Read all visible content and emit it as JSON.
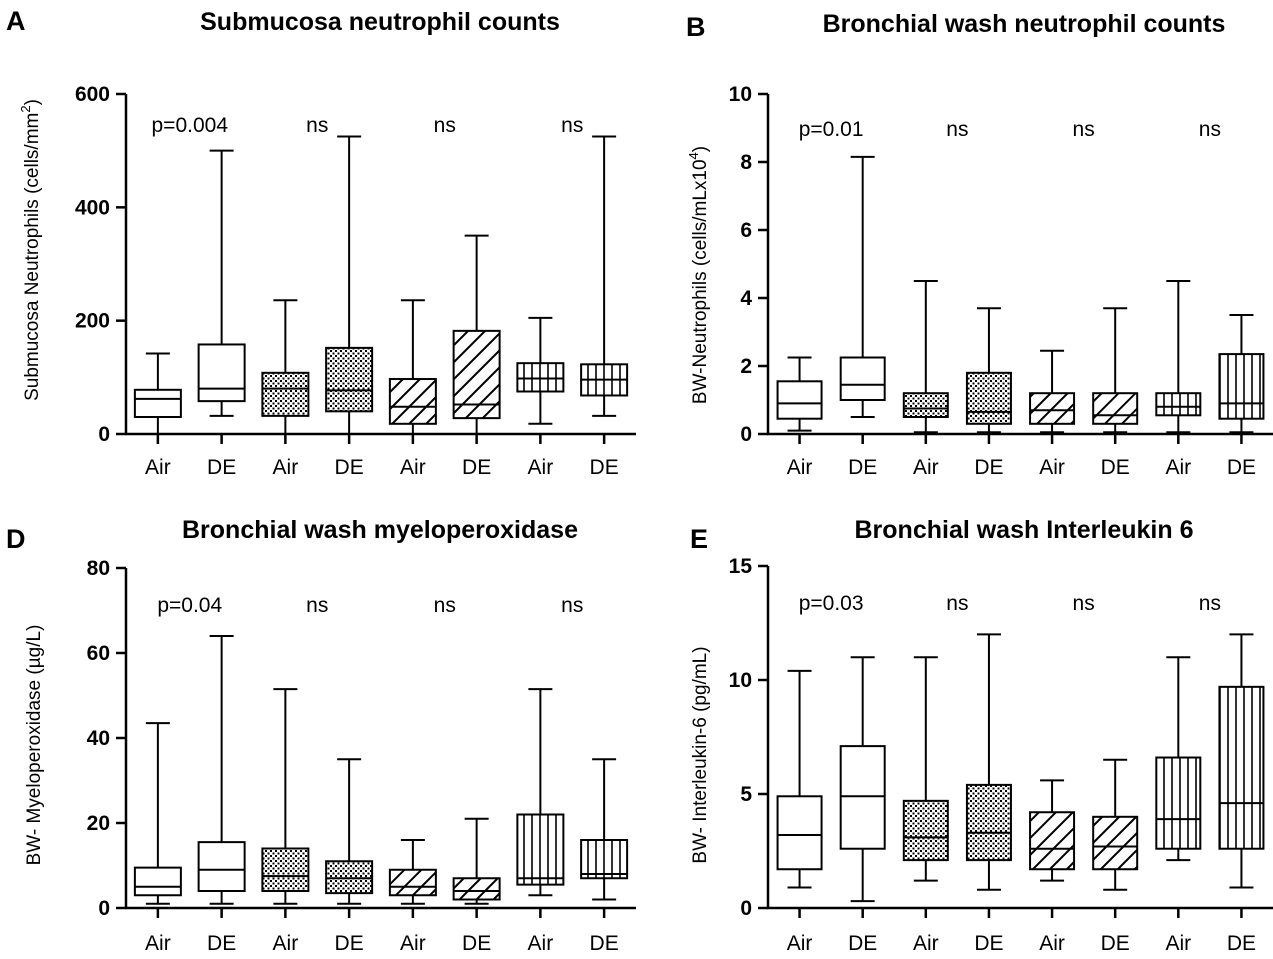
{
  "chart_data": [
    {
      "panel_label": "A",
      "type": "box",
      "title": "Submucosa neutrophil counts",
      "ylabel": "Submucosa Neutrophils (cells/mm",
      "ylabel_sup": "2",
      "ylabel_end": ")",
      "ylim": [
        0,
        600
      ],
      "yticks": [
        0,
        200,
        400,
        600
      ],
      "categories": [
        "Air",
        "DE",
        "Air",
        "DE",
        "Air",
        "DE",
        "Air",
        "DE"
      ],
      "patterns": [
        "none",
        "none",
        "dots",
        "dots",
        "diag",
        "diag",
        "vert",
        "vert"
      ],
      "annotations": [
        "p=0.004",
        "ns",
        "ns",
        "ns"
      ],
      "boxes": [
        {
          "min": 0,
          "q1": 30,
          "median": 62,
          "q3": 78,
          "max": 142
        },
        {
          "min": 32,
          "q1": 58,
          "median": 80,
          "q3": 158,
          "max": 500
        },
        {
          "min": 0,
          "q1": 32,
          "median": 80,
          "q3": 108,
          "max": 236
        },
        {
          "min": 0,
          "q1": 40,
          "median": 77,
          "q3": 152,
          "max": 525
        },
        {
          "min": 0,
          "q1": 18,
          "median": 48,
          "q3": 97,
          "max": 236
        },
        {
          "min": 0,
          "q1": 28,
          "median": 52,
          "q3": 182,
          "max": 350
        },
        {
          "min": 18,
          "q1": 75,
          "median": 98,
          "q3": 125,
          "max": 205
        },
        {
          "min": 32,
          "q1": 68,
          "median": 96,
          "q3": 123,
          "max": 525
        }
      ]
    },
    {
      "panel_label": "B",
      "type": "box",
      "title": "Bronchial wash neutrophil counts",
      "ylabel": "BW-Neutrophils (cells/mLx10",
      "ylabel_sup": "4",
      "ylabel_end": ")",
      "ylim": [
        0,
        10
      ],
      "yticks": [
        0,
        2,
        4,
        6,
        8,
        10
      ],
      "categories": [
        "Air",
        "DE",
        "Air",
        "DE",
        "Air",
        "DE",
        "Air",
        "DE"
      ],
      "patterns": [
        "none",
        "none",
        "dots",
        "dots",
        "diag",
        "diag",
        "vert",
        "vert"
      ],
      "annotations": [
        "p=0.01",
        "ns",
        "ns",
        "ns"
      ],
      "boxes": [
        {
          "min": 0.1,
          "q1": 0.45,
          "median": 0.9,
          "q3": 1.55,
          "max": 2.25
        },
        {
          "min": 0.5,
          "q1": 1.0,
          "median": 1.45,
          "q3": 2.25,
          "max": 8.15
        },
        {
          "min": 0.05,
          "q1": 0.5,
          "median": 0.75,
          "q3": 1.2,
          "max": 4.5
        },
        {
          "min": 0.05,
          "q1": 0.3,
          "median": 0.65,
          "q3": 1.8,
          "max": 3.7
        },
        {
          "min": 0.05,
          "q1": 0.3,
          "median": 0.7,
          "q3": 1.2,
          "max": 2.45
        },
        {
          "min": 0.05,
          "q1": 0.3,
          "median": 0.55,
          "q3": 1.2,
          "max": 3.7
        },
        {
          "min": 0.05,
          "q1": 0.55,
          "median": 0.8,
          "q3": 1.2,
          "max": 4.5
        },
        {
          "min": 0.05,
          "q1": 0.45,
          "median": 0.9,
          "q3": 2.35,
          "max": 3.5
        }
      ]
    },
    {
      "panel_label": "D",
      "type": "box",
      "title": "Bronchial wash myeloperoxidase",
      "ylabel": "BW- Myeloperoxidase (µg/L)",
      "ylabel_sup": "",
      "ylabel_end": "",
      "ylim": [
        0,
        80
      ],
      "yticks": [
        0,
        20,
        40,
        60,
        80
      ],
      "categories": [
        "Air",
        "DE",
        "Air",
        "DE",
        "Air",
        "DE",
        "Air",
        "DE"
      ],
      "patterns": [
        "none",
        "none",
        "dots",
        "dots",
        "diag",
        "diag",
        "vert",
        "vert"
      ],
      "annotations": [
        "p=0.04",
        "ns",
        "ns",
        "ns"
      ],
      "boxes": [
        {
          "min": 1.0,
          "q1": 3.0,
          "median": 5.0,
          "q3": 9.5,
          "max": 43.5
        },
        {
          "min": 1.0,
          "q1": 4.0,
          "median": 9.0,
          "q3": 15.5,
          "max": 64.0
        },
        {
          "min": 1.0,
          "q1": 4.0,
          "median": 7.5,
          "q3": 14.0,
          "max": 51.5
        },
        {
          "min": 1.0,
          "q1": 3.5,
          "median": 7.0,
          "q3": 11.0,
          "max": 35.0
        },
        {
          "min": 1.0,
          "q1": 3.0,
          "median": 5.0,
          "q3": 9.0,
          "max": 16.0
        },
        {
          "min": 1.0,
          "q1": 2.0,
          "median": 4.0,
          "q3": 7.0,
          "max": 21.0
        },
        {
          "min": 3.0,
          "q1": 5.5,
          "median": 7.0,
          "q3": 22.0,
          "max": 51.5
        },
        {
          "min": 2.0,
          "q1": 7.0,
          "median": 8.0,
          "q3": 16.0,
          "max": 35.0
        }
      ]
    },
    {
      "panel_label": "E",
      "type": "box",
      "title": "Bronchial wash Interleukin 6",
      "ylabel": "BW- Interleukin-6 (pg/mL)",
      "ylabel_sup": "",
      "ylabel_end": "",
      "ylim": [
        0,
        15
      ],
      "yticks": [
        0,
        5,
        10,
        15
      ],
      "categories": [
        "Air",
        "DE",
        "Air",
        "DE",
        "Air",
        "DE",
        "Air",
        "DE"
      ],
      "patterns": [
        "none",
        "none",
        "dots",
        "dots",
        "diag",
        "diag",
        "vert",
        "vert"
      ],
      "annotations": [
        "p=0.03",
        "ns",
        "ns",
        "ns"
      ],
      "boxes": [
        {
          "min": 0.9,
          "q1": 1.7,
          "median": 3.2,
          "q3": 4.9,
          "max": 10.4
        },
        {
          "min": 0.3,
          "q1": 2.6,
          "median": 4.9,
          "q3": 7.1,
          "max": 11.0
        },
        {
          "min": 1.2,
          "q1": 2.1,
          "median": 3.1,
          "q3": 4.7,
          "max": 11.0
        },
        {
          "min": 0.8,
          "q1": 2.1,
          "median": 3.3,
          "q3": 5.4,
          "max": 12.0
        },
        {
          "min": 1.2,
          "q1": 1.7,
          "median": 2.6,
          "q3": 4.2,
          "max": 5.6
        },
        {
          "min": 0.8,
          "q1": 1.7,
          "median": 2.7,
          "q3": 4.0,
          "max": 6.5
        },
        {
          "min": 2.1,
          "q1": 2.6,
          "median": 3.9,
          "q3": 6.6,
          "max": 11.0
        },
        {
          "min": 0.9,
          "q1": 2.6,
          "median": 4.6,
          "q3": 9.7,
          "max": 12.0
        }
      ]
    }
  ]
}
